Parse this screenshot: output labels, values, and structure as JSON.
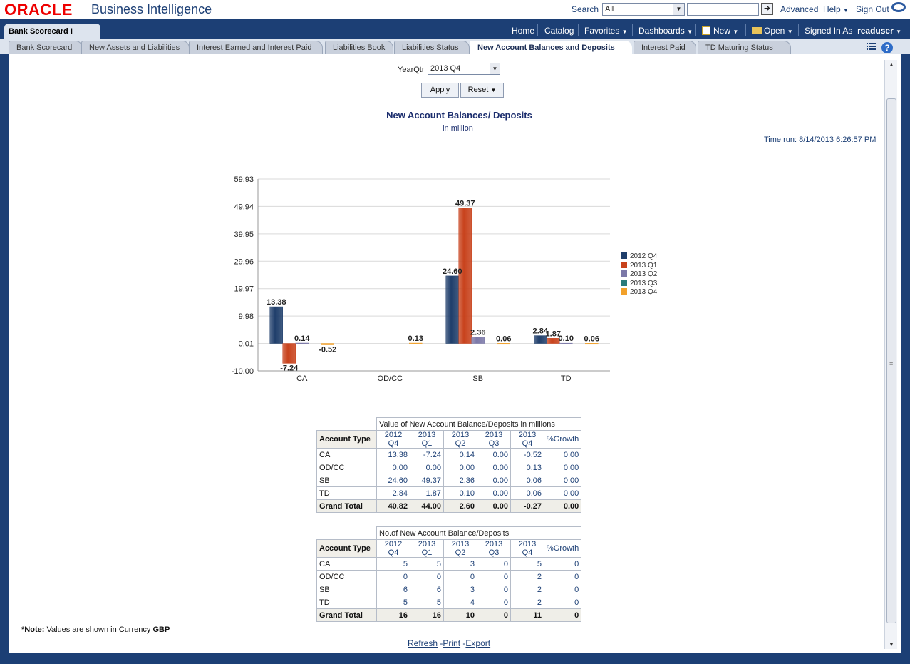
{
  "header": {
    "logo": "ORACLE",
    "product": "Business Intelligence",
    "search_label": "Search",
    "search_scope": "All",
    "search_placeholder": "",
    "advanced": "Advanced",
    "help": "Help",
    "sign_out": "Sign Out"
  },
  "globalnav": {
    "dashboard_title": "Bank Scorecard I",
    "home": "Home",
    "catalog": "Catalog",
    "favorites": "Favorites",
    "dashboards": "Dashboards",
    "new": "New",
    "open": "Open",
    "signed_in_as": "Signed In As",
    "user": "readuser"
  },
  "tabs": [
    {
      "label": "Bank Scorecard"
    },
    {
      "label": "New Assets and Liabilities"
    },
    {
      "label": "Interest Earned and Interest Paid"
    },
    {
      "label": "Liabilities Book"
    },
    {
      "label": "Liabilities Status"
    },
    {
      "label": "New Account Balances and Deposits",
      "active": true
    },
    {
      "label": "Interest Paid"
    },
    {
      "label": "TD Maturing Status"
    }
  ],
  "prompt": {
    "label": "YearQtr",
    "value": "2013 Q4",
    "apply": "Apply",
    "reset": "Reset"
  },
  "report": {
    "title": "New Account Balances/ Deposits",
    "subtitle": "in million",
    "time_run": "Time run: 8/14/2013 6:26:57 PM"
  },
  "chart_data": {
    "type": "bar",
    "categories": [
      "CA",
      "OD/CC",
      "SB",
      "TD"
    ],
    "series": [
      {
        "name": "2012 Q4",
        "values": [
          13.38,
          0,
          24.6,
          2.84
        ]
      },
      {
        "name": "2013 Q1",
        "values": [
          -7.24,
          0,
          49.37,
          1.87
        ]
      },
      {
        "name": "2013 Q2",
        "values": [
          0.14,
          0,
          2.36,
          0.1
        ]
      },
      {
        "name": "2013 Q3",
        "values": [
          0,
          0,
          0,
          0
        ]
      },
      {
        "name": "2013 Q4",
        "values": [
          -0.52,
          0.13,
          0.06,
          0.06
        ]
      }
    ],
    "data_labels": [
      {
        "category": "CA",
        "series": "2012 Q4",
        "text": "13.38"
      },
      {
        "category": "CA",
        "series": "2013 Q1",
        "text": "-7.24"
      },
      {
        "category": "CA",
        "series": "2013 Q2",
        "text": "0.14"
      },
      {
        "category": "CA",
        "series": "2013 Q4",
        "text": "-0.52"
      },
      {
        "category": "OD/CC",
        "series": "2013 Q4",
        "text": "0.13"
      },
      {
        "category": "SB",
        "series": "2012 Q4",
        "text": "24.60"
      },
      {
        "category": "SB",
        "series": "2013 Q1",
        "text": "49.37"
      },
      {
        "category": "SB",
        "series": "2013 Q2",
        "text": "2.36"
      },
      {
        "category": "SB",
        "series": "2013 Q4",
        "text": "0.06"
      },
      {
        "category": "TD",
        "series": "2012 Q4",
        "text": "2.84"
      },
      {
        "category": "TD",
        "series": "2013 Q1",
        "text": "1.87"
      },
      {
        "category": "TD",
        "series": "2013 Q2",
        "text": "0.10"
      },
      {
        "category": "TD",
        "series": "2013 Q4",
        "text": "0.06"
      }
    ],
    "y_ticks": [
      "59.93",
      "49.94",
      "39.95",
      "29.96",
      "19.97",
      "9.98",
      "-0.01",
      "-10.00"
    ],
    "ylim": [
      -10.0,
      59.93
    ],
    "grid": true,
    "legend": "right",
    "colors": [
      "#1f3e6b",
      "#c8421c",
      "#7b78a8",
      "#2a7a7a",
      "#f2a12a"
    ]
  },
  "table_values": {
    "caption": "Value of New Account Balance/Deposits in millions",
    "row_header": "Account Type",
    "columns": [
      "2012 Q4",
      "2013 Q1",
      "2013 Q2",
      "2013 Q3",
      "2013 Q4",
      "%Growth"
    ],
    "rows": [
      {
        "label": "CA",
        "cells": [
          "13.38",
          "-7.24",
          "0.14",
          "0.00",
          "-0.52",
          "0.00"
        ]
      },
      {
        "label": "OD/CC",
        "cells": [
          "0.00",
          "0.00",
          "0.00",
          "0.00",
          "0.13",
          "0.00"
        ]
      },
      {
        "label": "SB",
        "cells": [
          "24.60",
          "49.37",
          "2.36",
          "0.00",
          "0.06",
          "0.00"
        ]
      },
      {
        "label": "TD",
        "cells": [
          "2.84",
          "1.87",
          "0.10",
          "0.00",
          "0.06",
          "0.00"
        ]
      }
    ],
    "total": {
      "label": "Grand Total",
      "cells": [
        "40.82",
        "44.00",
        "2.60",
        "0.00",
        "-0.27",
        "0.00"
      ]
    }
  },
  "table_counts": {
    "caption": "No.of New Account Balance/Deposits",
    "row_header": "Account Type",
    "columns": [
      "2012 Q4",
      "2013 Q1",
      "2013 Q2",
      "2013 Q3",
      "2013 Q4",
      "%Growth"
    ],
    "rows": [
      {
        "label": "CA",
        "cells": [
          "5",
          "5",
          "3",
          "0",
          "5",
          "0"
        ]
      },
      {
        "label": "OD/CC",
        "cells": [
          "0",
          "0",
          "0",
          "0",
          "2",
          "0"
        ]
      },
      {
        "label": "SB",
        "cells": [
          "6",
          "6",
          "3",
          "0",
          "2",
          "0"
        ]
      },
      {
        "label": "TD",
        "cells": [
          "5",
          "5",
          "4",
          "0",
          "2",
          "0"
        ]
      }
    ],
    "total": {
      "label": "Grand Total",
      "cells": [
        "16",
        "16",
        "10",
        "0",
        "11",
        "0"
      ]
    }
  },
  "note": {
    "prefix": "*Note:",
    "text": " Values are shown in Currency ",
    "currency": "GBP"
  },
  "footer": {
    "refresh": "Refresh",
    "print": "Print",
    "export": "Export",
    "sep": "-"
  },
  "theme": {
    "brand_red": "#ee0000",
    "nav_blue": "#1c3f75"
  }
}
